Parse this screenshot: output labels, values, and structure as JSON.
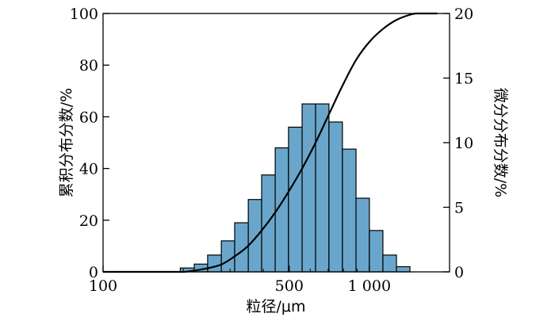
{
  "chart_data": {
    "type": "bar",
    "xlabel": "粒径/μm",
    "ylabel_left": "累积分布分数/%",
    "ylabel_right": "微分分布分数/%",
    "x_scale": "log",
    "xlim": [
      100,
      2000
    ],
    "ylim_left": [
      0,
      100
    ],
    "ylim_right": [
      0,
      20
    ],
    "grid": false,
    "x_ticks": [
      {
        "value": 100,
        "label": "100"
      },
      {
        "value": 500,
        "label": "500"
      },
      {
        "value": 1000,
        "label": "1 000"
      }
    ],
    "y_left_ticks": [
      {
        "value": 0,
        "label": "0"
      },
      {
        "value": 20,
        "label": "20"
      },
      {
        "value": 40,
        "label": "40"
      },
      {
        "value": 60,
        "label": "60"
      },
      {
        "value": 80,
        "label": "80"
      },
      {
        "value": 100,
        "label": "100"
      }
    ],
    "y_right_ticks": [
      {
        "value": 0,
        "label": "0"
      },
      {
        "value": 5,
        "label": "5"
      },
      {
        "value": 10,
        "label": "10"
      },
      {
        "value": 15,
        "label": "15"
      },
      {
        "value": 20,
        "label": "20"
      }
    ],
    "bars": {
      "axis": "right",
      "color": "#6aa6cb",
      "edge_color": "#000000",
      "bins": [
        {
          "from": 195,
          "to": 220,
          "value": 0.3
        },
        {
          "from": 220,
          "to": 247,
          "value": 0.6
        },
        {
          "from": 247,
          "to": 278,
          "value": 1.3
        },
        {
          "from": 278,
          "to": 312,
          "value": 2.4
        },
        {
          "from": 312,
          "to": 351,
          "value": 3.8
        },
        {
          "from": 351,
          "to": 394,
          "value": 5.6
        },
        {
          "from": 394,
          "to": 443,
          "value": 7.5
        },
        {
          "from": 443,
          "to": 497,
          "value": 9.6
        },
        {
          "from": 497,
          "to": 559,
          "value": 11.2
        },
        {
          "from": 559,
          "to": 628,
          "value": 13.0
        },
        {
          "from": 628,
          "to": 705,
          "value": 13.0
        },
        {
          "from": 705,
          "to": 792,
          "value": 11.6
        },
        {
          "from": 792,
          "to": 891,
          "value": 9.5
        },
        {
          "from": 891,
          "to": 1000,
          "value": 5.7
        },
        {
          "from": 1000,
          "to": 1124,
          "value": 3.2
        },
        {
          "from": 1124,
          "to": 1264,
          "value": 1.3
        },
        {
          "from": 1264,
          "to": 1420,
          "value": 0.4
        }
      ]
    },
    "cumulative_curve": {
      "axis": "left",
      "color": "#000000",
      "points": [
        [
          100,
          0
        ],
        [
          200,
          0
        ],
        [
          220,
          0.5
        ],
        [
          250,
          1.5
        ],
        [
          280,
          3
        ],
        [
          312,
          6
        ],
        [
          350,
          10
        ],
        [
          394,
          16
        ],
        [
          443,
          23
        ],
        [
          497,
          31
        ],
        [
          559,
          40
        ],
        [
          628,
          50
        ],
        [
          705,
          61
        ],
        [
          792,
          72
        ],
        [
          891,
          82
        ],
        [
          1000,
          89
        ],
        [
          1124,
          94
        ],
        [
          1264,
          97.5
        ],
        [
          1420,
          99.5
        ],
        [
          1500,
          100
        ],
        [
          1800,
          100
        ]
      ]
    }
  }
}
